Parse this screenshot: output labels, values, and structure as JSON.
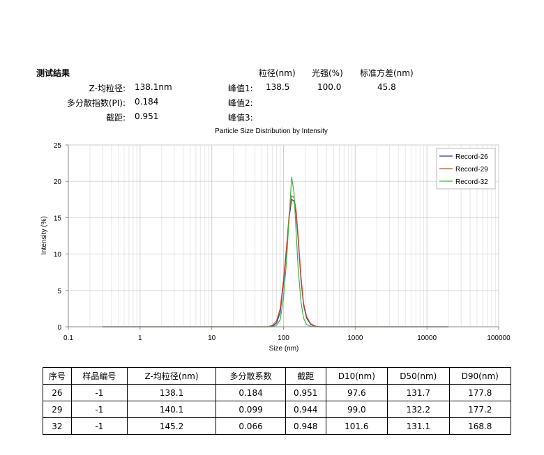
{
  "results": {
    "title": "测试结果",
    "col_headers": [
      "粒径(nm)",
      "光强(%)",
      "标准方差(nm)"
    ],
    "z_avg_label": "Z-均粒径:",
    "z_avg_value": "138.1nm",
    "pi_label": "多分散指数(PI):",
    "pi_value": "0.184",
    "intercept_label": "截距:",
    "intercept_value": "0.951",
    "peaks": [
      {
        "label": "峰值1:",
        "size": "138.5",
        "intensity": "100.0",
        "std": "45.8"
      },
      {
        "label": "峰值2:",
        "size": "",
        "intensity": "",
        "std": ""
      },
      {
        "label": "峰值3:",
        "size": "",
        "intensity": "",
        "std": ""
      }
    ]
  },
  "chart_data": {
    "type": "line",
    "title": "Particle Size Distribution by Intensity",
    "xlabel": "Size (nm)",
    "ylabel": "Intensity (%)",
    "xscale": "log",
    "xlim": [
      0.1,
      100000
    ],
    "ylim": [
      0,
      25
    ],
    "xticks": [
      "0.1",
      "1",
      "10",
      "100",
      "1000",
      "10000",
      "100000"
    ],
    "yticks": [
      "0",
      "5",
      "10",
      "15",
      "20",
      "25"
    ],
    "grid": true,
    "legend_position": "top-right",
    "series": [
      {
        "name": "Record-26",
        "color": "#1f3f99",
        "x": [
          0.3,
          60,
          70,
          80,
          90,
          100,
          110,
          120,
          130,
          140,
          150,
          160,
          175,
          190,
          210,
          240,
          280,
          320,
          20000
        ],
        "y": [
          0,
          0,
          0.1,
          0.5,
          2,
          6,
          10.5,
          15,
          17.5,
          17.3,
          15.5,
          12,
          6.5,
          3,
          1.2,
          0.3,
          0.05,
          0,
          0
        ]
      },
      {
        "name": "Record-29",
        "color": "#e04020",
        "x": [
          0.3,
          60,
          70,
          80,
          90,
          100,
          110,
          120,
          130,
          140,
          150,
          160,
          175,
          190,
          210,
          240,
          280,
          320,
          20000
        ],
        "y": [
          0,
          0,
          0.2,
          0.8,
          2.5,
          6.5,
          11,
          15.5,
          18,
          17.8,
          16,
          12.5,
          7,
          3.3,
          1.4,
          0.4,
          0.1,
          0,
          0
        ]
      },
      {
        "name": "Record-32",
        "color": "#40b040",
        "x": [
          0.3,
          60,
          70,
          80,
          90,
          100,
          110,
          120,
          130,
          140,
          150,
          160,
          175,
          190,
          210,
          240,
          280,
          320,
          20000
        ],
        "y": [
          0,
          0,
          0,
          0.2,
          1,
          4,
          9,
          15,
          20.6,
          18.5,
          13,
          8,
          3.5,
          1.2,
          0.3,
          0.05,
          0,
          0,
          0
        ]
      }
    ]
  },
  "table": {
    "headers": [
      "序号",
      "样品编号",
      "Z-均粒径(nm)",
      "多分散系数",
      "截距",
      "D10(nm)",
      "D50(nm)",
      "D90(nm)"
    ],
    "rows": [
      [
        "26",
        "-1",
        "138.1",
        "0.184",
        "0.951",
        "97.6",
        "131.7",
        "177.8"
      ],
      [
        "29",
        "-1",
        "140.1",
        "0.099",
        "0.944",
        "99.0",
        "132.2",
        "177.2"
      ],
      [
        "32",
        "-1",
        "145.2",
        "0.066",
        "0.948",
        "101.6",
        "131.1",
        "168.8"
      ]
    ]
  }
}
